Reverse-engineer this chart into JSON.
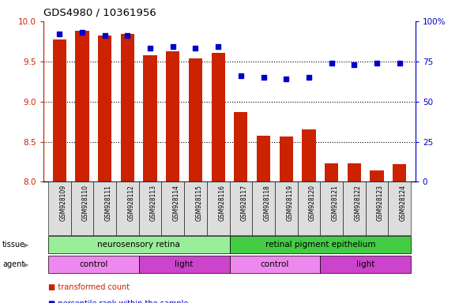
{
  "title": "GDS4980 / 10361956",
  "samples": [
    "GSM928109",
    "GSM928110",
    "GSM928111",
    "GSM928112",
    "GSM928113",
    "GSM928114",
    "GSM928115",
    "GSM928116",
    "GSM928117",
    "GSM928118",
    "GSM928119",
    "GSM928120",
    "GSM928121",
    "GSM928122",
    "GSM928123",
    "GSM928124"
  ],
  "transformed_count": [
    9.77,
    9.88,
    9.82,
    9.84,
    9.58,
    9.63,
    9.54,
    9.61,
    8.87,
    8.57,
    8.56,
    8.65,
    8.23,
    8.23,
    8.14,
    8.22
  ],
  "percentile_rank": [
    92,
    93,
    91,
    91,
    83,
    84,
    83,
    84,
    66,
    65,
    64,
    65,
    74,
    73,
    74,
    74
  ],
  "ylim_left": [
    8,
    10
  ],
  "ylim_right": [
    0,
    100
  ],
  "yticks_left": [
    8,
    8.5,
    9,
    9.5,
    10
  ],
  "yticks_right": [
    0,
    25,
    50,
    75,
    100
  ],
  "ytick_labels_right": [
    "0",
    "25",
    "50",
    "75",
    "100%"
  ],
  "bar_color": "#cc2200",
  "dot_color": "#0000cc",
  "tissue_groups": [
    {
      "label": "neurosensory retina",
      "start": 0,
      "end": 8,
      "color": "#99ee99"
    },
    {
      "label": "retinal pigment epithelium",
      "start": 8,
      "end": 16,
      "color": "#44cc44"
    }
  ],
  "agent_groups": [
    {
      "label": "control",
      "start": 0,
      "end": 4,
      "color": "#ee88ee"
    },
    {
      "label": "light",
      "start": 4,
      "end": 8,
      "color": "#cc44cc"
    },
    {
      "label": "control",
      "start": 8,
      "end": 12,
      "color": "#ee88ee"
    },
    {
      "label": "light",
      "start": 12,
      "end": 16,
      "color": "#cc44cc"
    }
  ],
  "background_color": "#ffffff",
  "axis_left_color": "#cc2200",
  "axis_right_color": "#0000cc",
  "sample_bg_color": "#dddddd",
  "grid_dotted_ticks": [
    8.5,
    9.0,
    9.5
  ],
  "bar_width": 0.6
}
